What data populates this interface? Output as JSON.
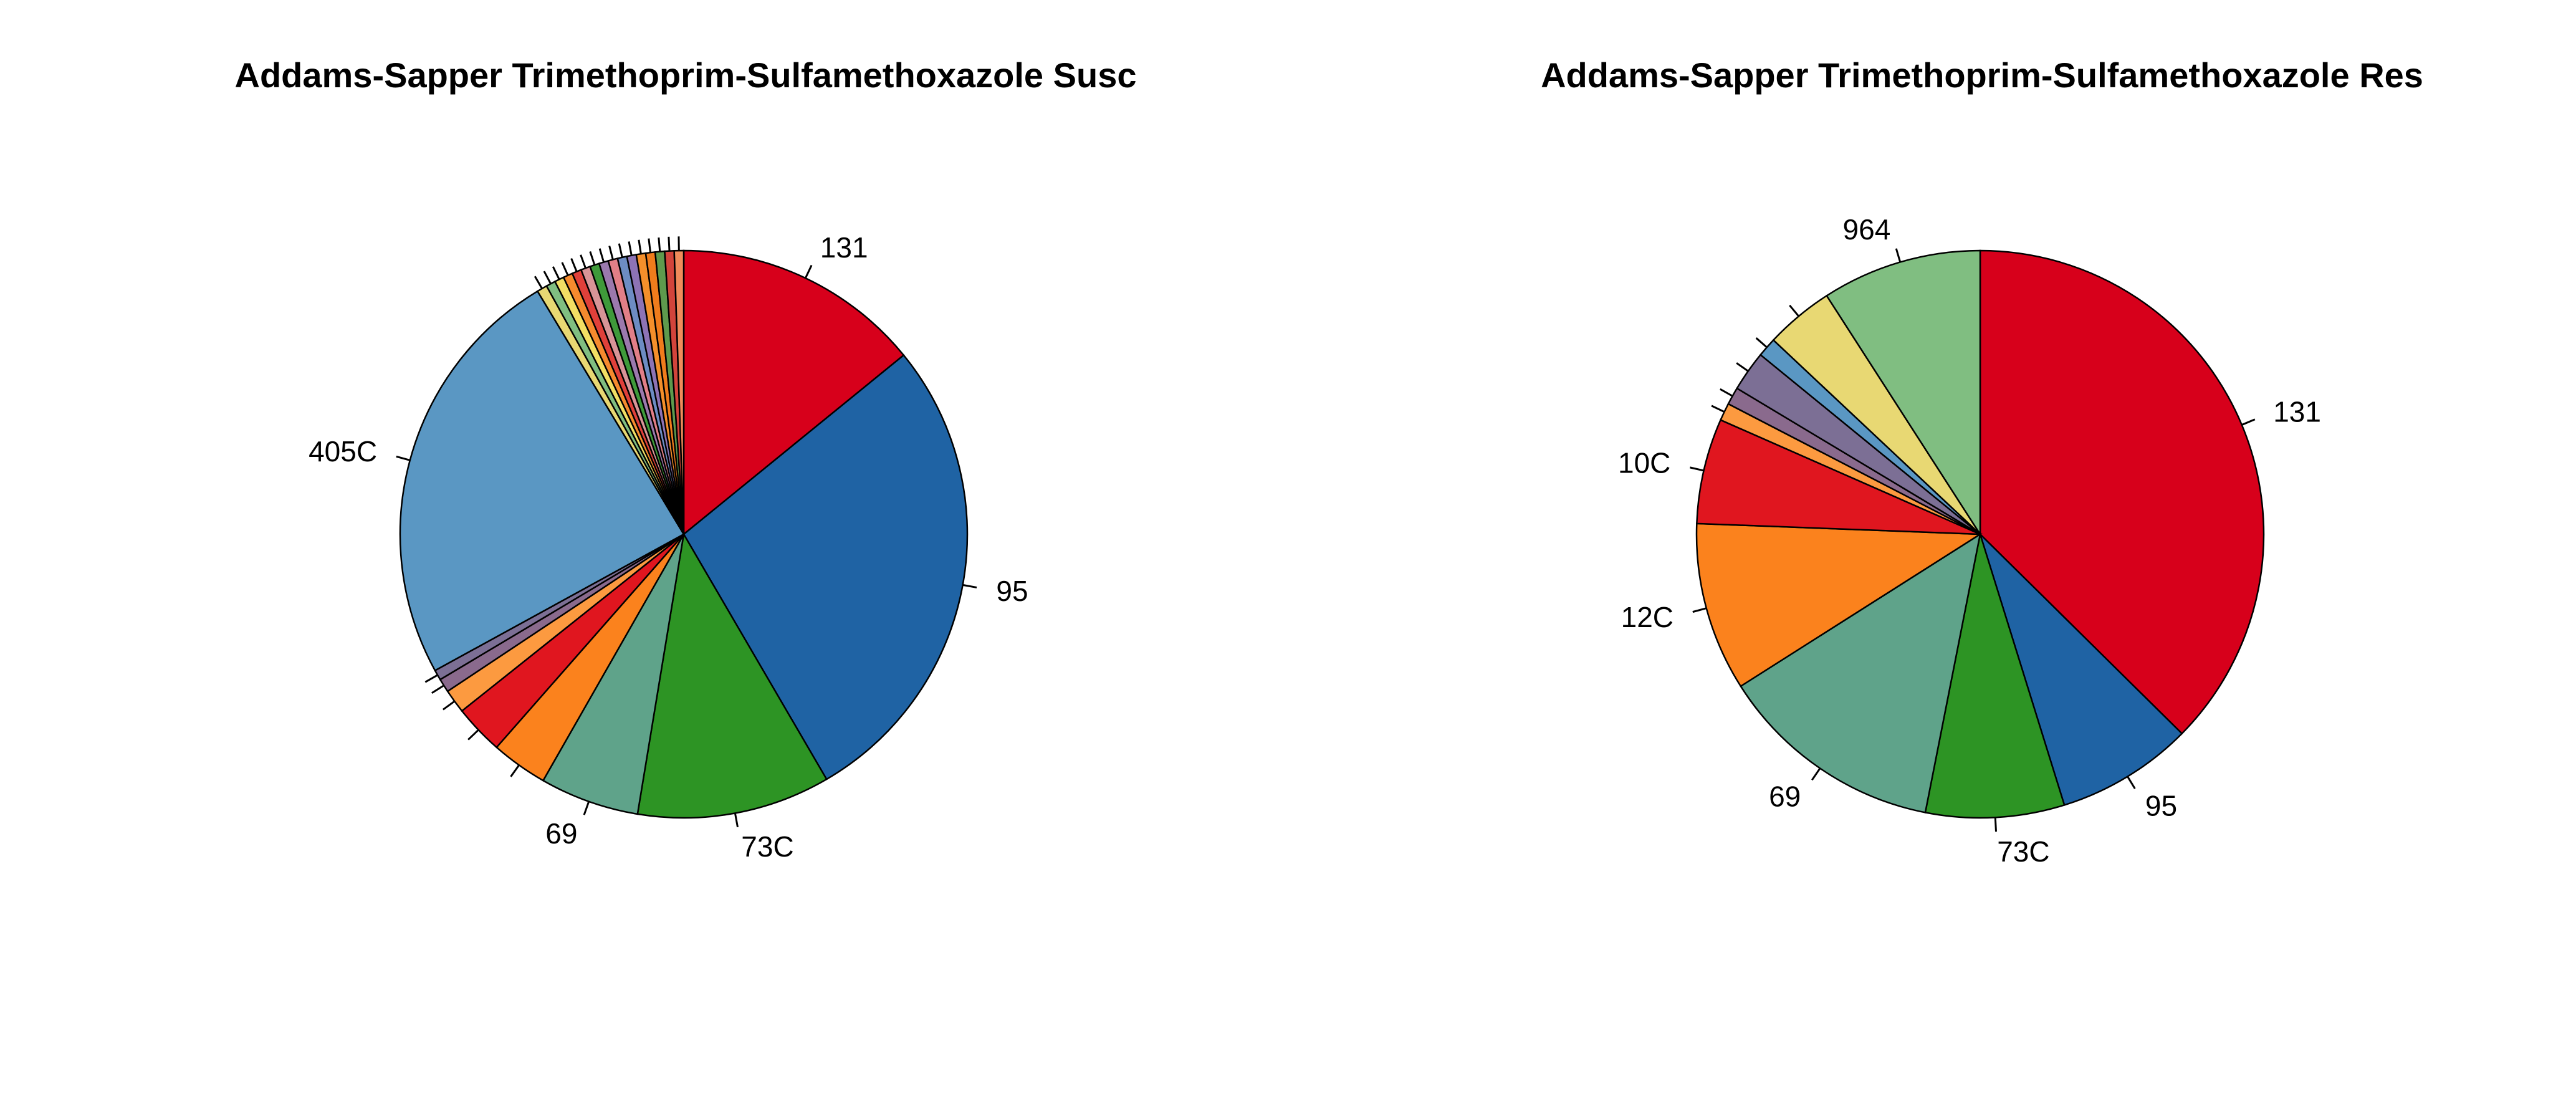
{
  "chart_data": [
    {
      "type": "pie",
      "title": "Addams-Sapper Trimethoprim-Sulfamethoxazole Susc",
      "start_angle_deg": 90,
      "direction": "clockwise",
      "slices": [
        {
          "label": "131",
          "value": 14.5,
          "color": "#d7001b"
        },
        {
          "label": "95",
          "value": 28.2,
          "color": "#1f63a4"
        },
        {
          "label": "73C",
          "value": 11.3,
          "color": "#2d9424"
        },
        {
          "label": "69",
          "value": 5.8,
          "color": "#5fa38a"
        },
        {
          "label": "",
          "value": 3.3,
          "color": "#fb821d"
        },
        {
          "label": "",
          "value": 2.9,
          "color": "#e0161f"
        },
        {
          "label": "",
          "value": 1.4,
          "color": "#fc9a40"
        },
        {
          "label": "",
          "value": 0.8,
          "color": "#8a6a8d"
        },
        {
          "label": "",
          "value": 0.6,
          "color": "#7c6f95"
        },
        {
          "label": "405C",
          "value": 25.0,
          "color": "#5a97c3"
        },
        {
          "label": "",
          "value": 0.6,
          "color": "#e8d873"
        },
        {
          "label": "",
          "value": 0.55,
          "color": "#80be81"
        },
        {
          "label": "",
          "value": 0.55,
          "color": "#f2de64"
        },
        {
          "label": "",
          "value": 0.55,
          "color": "#f58a2e"
        },
        {
          "label": "",
          "value": 0.55,
          "color": "#e0403a"
        },
        {
          "label": "",
          "value": 0.55,
          "color": "#d89497"
        },
        {
          "label": "",
          "value": 0.55,
          "color": "#3f9a3a"
        },
        {
          "label": "",
          "value": 0.55,
          "color": "#9b79ad"
        },
        {
          "label": "",
          "value": 0.55,
          "color": "#e27f87"
        },
        {
          "label": "",
          "value": 0.55,
          "color": "#6d8cc3"
        },
        {
          "label": "",
          "value": 0.55,
          "color": "#8d73b5"
        },
        {
          "label": "",
          "value": 0.55,
          "color": "#f48f2b"
        },
        {
          "label": "",
          "value": 0.55,
          "color": "#f07c1c"
        },
        {
          "label": "",
          "value": 0.55,
          "color": "#5e9a4d"
        },
        {
          "label": "",
          "value": 0.55,
          "color": "#d2443b"
        },
        {
          "label": "",
          "value": 0.55,
          "color": "#ef8b5b"
        }
      ]
    },
    {
      "type": "pie",
      "title": "Addams-Sapper Trimethoprim-Sulfamethoxazole Res",
      "start_angle_deg": 90,
      "direction": "clockwise",
      "slices": [
        {
          "label": "131",
          "value": 37.4,
          "color": "#d7001b"
        },
        {
          "label": "95",
          "value": 7.8,
          "color": "#1f63a4"
        },
        {
          "label": "73C",
          "value": 7.9,
          "color": "#2d9424"
        },
        {
          "label": "69",
          "value": 12.9,
          "color": "#5fa38a"
        },
        {
          "label": "12C",
          "value": 9.6,
          "color": "#fb821d"
        },
        {
          "label": "10C",
          "value": 6.0,
          "color": "#e0161f"
        },
        {
          "label": "",
          "value": 1.0,
          "color": "#fc9a40"
        },
        {
          "label": "",
          "value": 1.0,
          "color": "#8a6a8d"
        },
        {
          "label": "",
          "value": 2.3,
          "color": "#7c6f95"
        },
        {
          "label": "",
          "value": 1.1,
          "color": "#5a97c3"
        },
        {
          "label": "",
          "value": 3.9,
          "color": "#e8d873"
        },
        {
          "label": "964",
          "value": 9.1,
          "color": "#80be81"
        }
      ]
    }
  ]
}
